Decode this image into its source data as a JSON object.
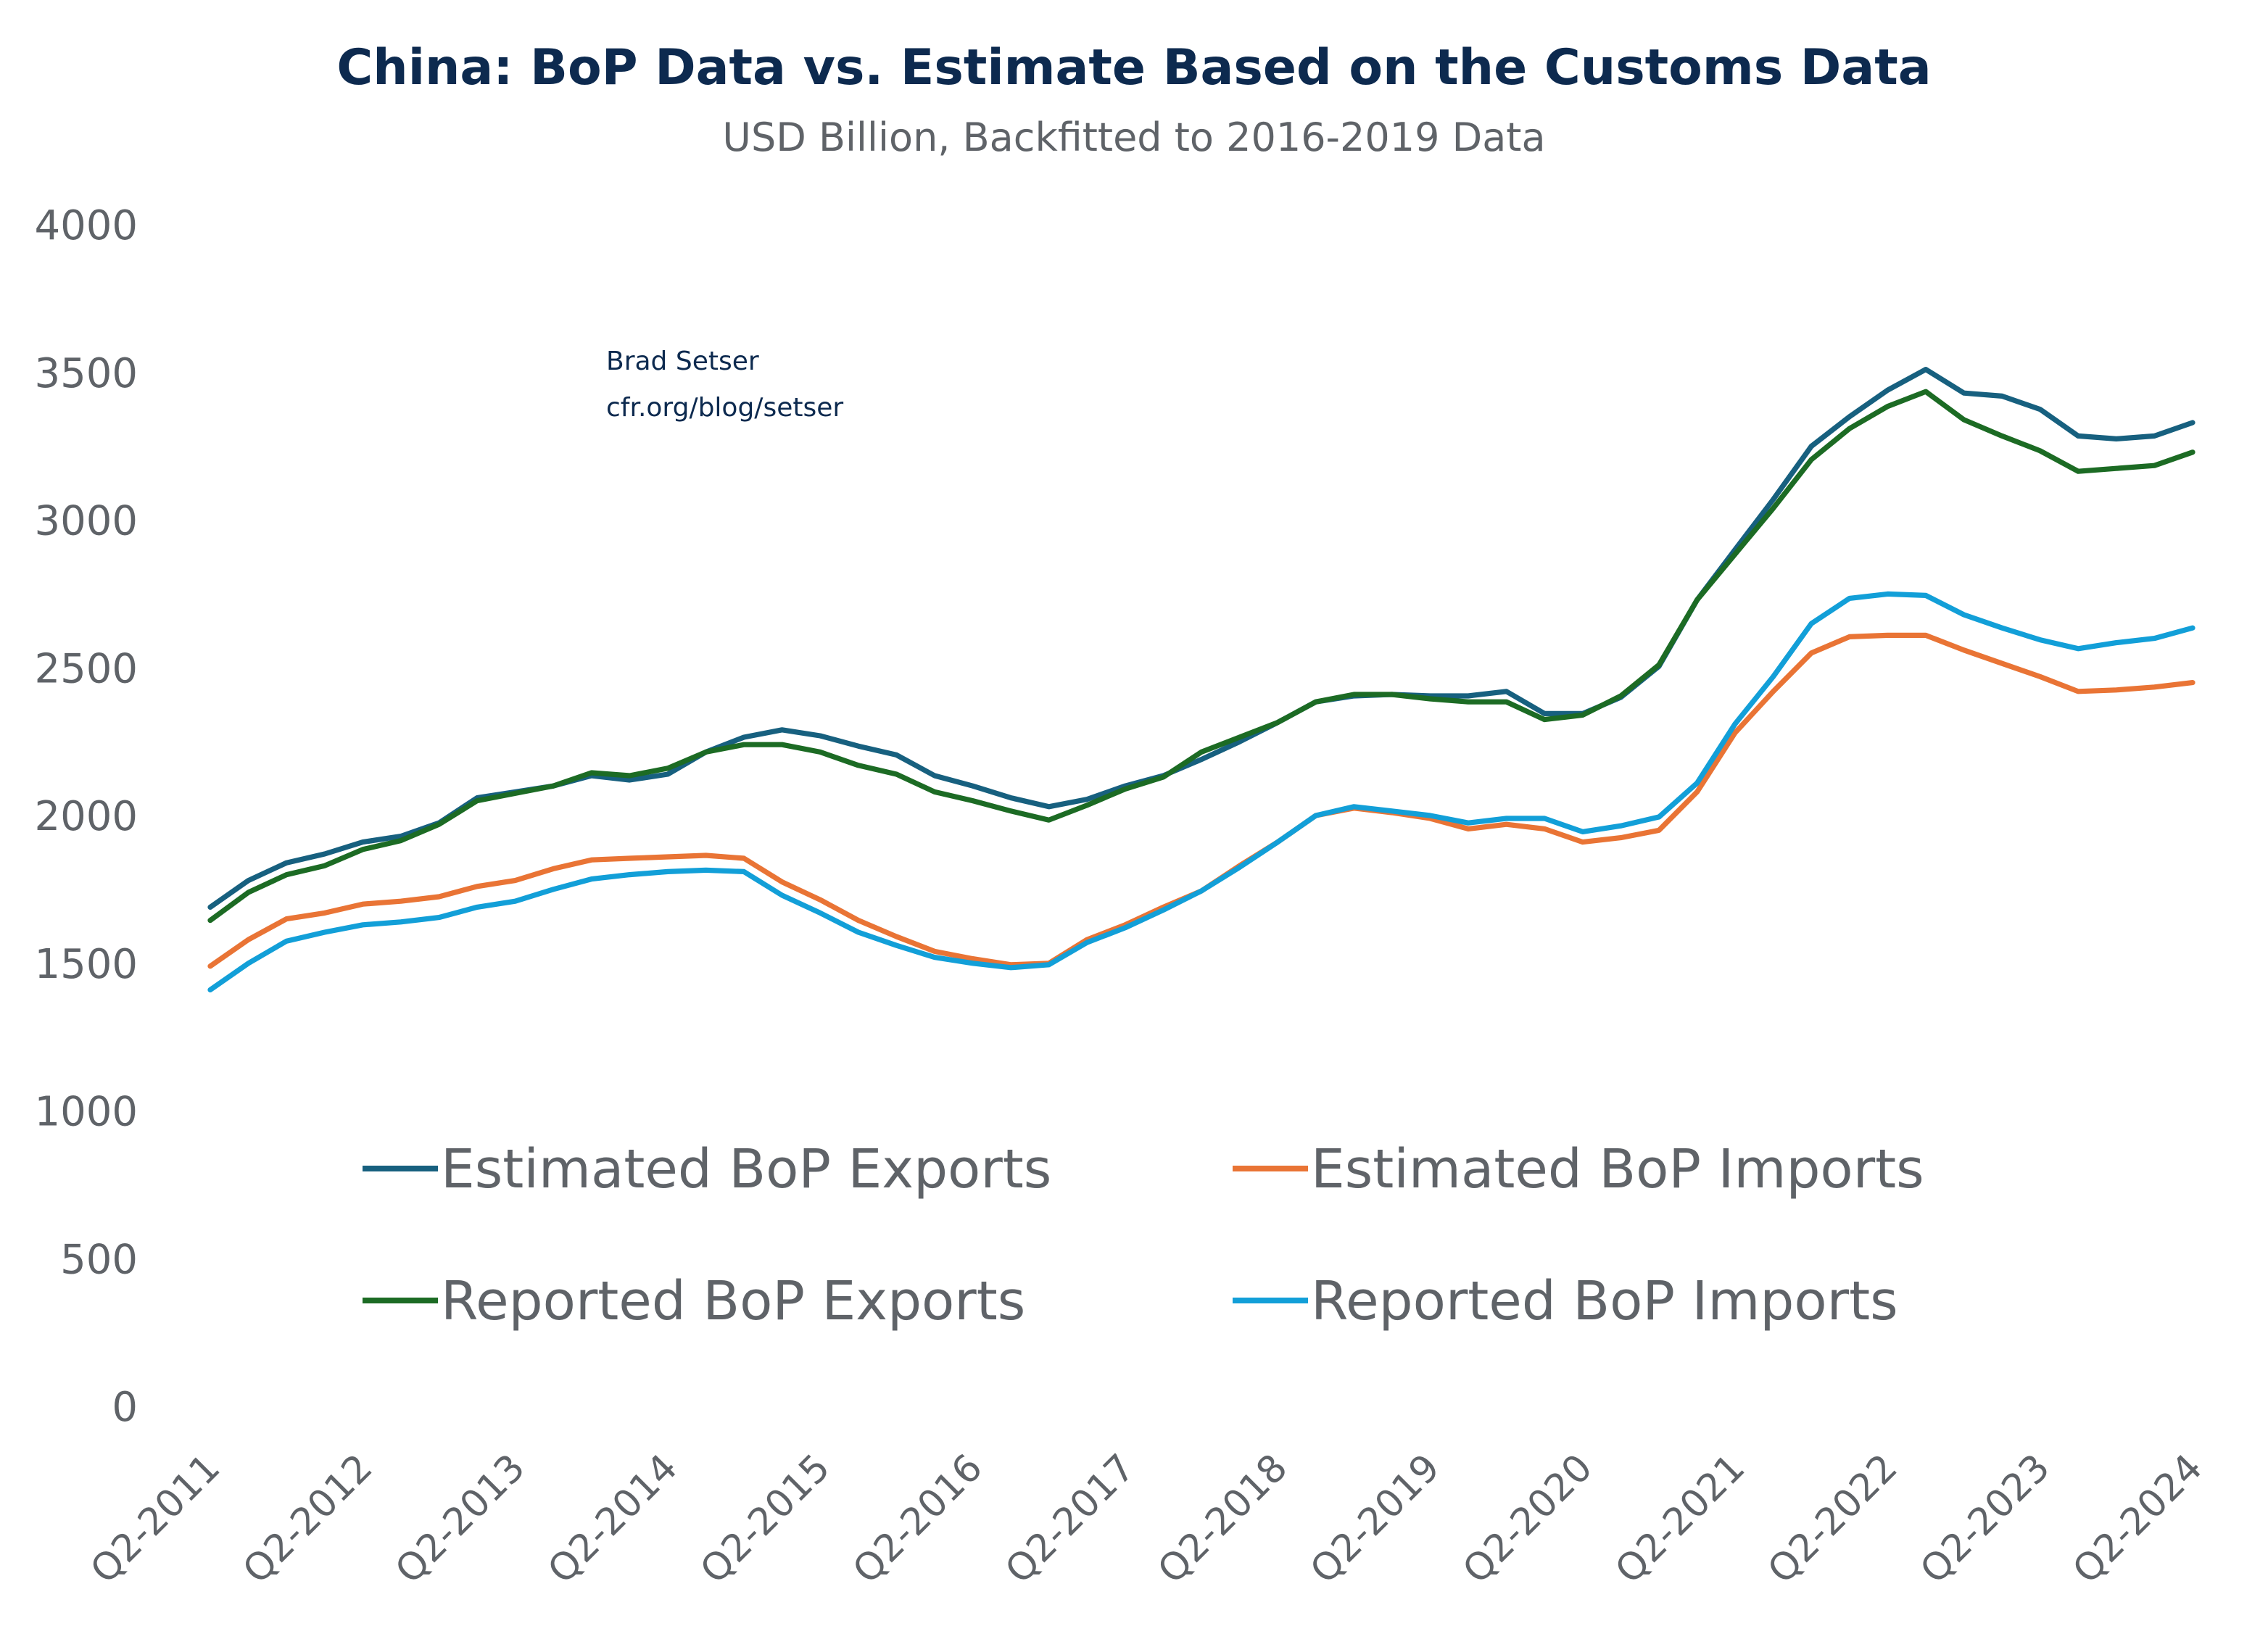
{
  "chart_data": {
    "type": "line",
    "title": "China: BoP Data vs. Estimate Based on the Customs Data",
    "subtitle": "USD Billion, Backfitted to 2016-2019 Data",
    "annotation": [
      "Brad Setser",
      "cfr.org/blog/setser"
    ],
    "xlabel": "",
    "ylabel": "",
    "ylim": [
      0,
      4000
    ],
    "yticks": [
      "0",
      "500",
      "1000",
      "1500",
      "2000",
      "2500",
      "3000",
      "3500",
      "4000"
    ],
    "xticks": [
      "Q2-2011",
      "Q2-2012",
      "Q2-2013",
      "Q2-2014",
      "Q2-2015",
      "Q2-2016",
      "Q2-2017",
      "Q2-2018",
      "Q2-2019",
      "Q2-2020",
      "Q2-2021",
      "Q2-2022",
      "Q2-2023",
      "Q2-2024"
    ],
    "x_range": [
      "Q2-2011",
      "Q2-2024"
    ],
    "frequency": "quarterly",
    "grid": false,
    "legend_position": "bottom-center",
    "series": [
      {
        "name": "Estimated BoP Exports",
        "color": "#17607f",
        "values": [
          1690,
          1780,
          1840,
          1870,
          1910,
          1930,
          1975,
          2060,
          2080,
          2100,
          2135,
          2120,
          2140,
          2215,
          2265,
          2290,
          2270,
          2235,
          2205,
          2135,
          2100,
          2060,
          2030,
          2055,
          2100,
          2135,
          2190,
          2250,
          2315,
          2385,
          2405,
          2410,
          2405,
          2405,
          2420,
          2345,
          2345,
          2400,
          2505,
          2730,
          2900,
          3070,
          3250,
          3350,
          3440,
          3510,
          3430,
          3420,
          3375,
          3285,
          3275,
          3285,
          3330
        ]
      },
      {
        "name": "Estimated BoP Imports",
        "color": "#e97435",
        "values": [
          1490,
          1580,
          1650,
          1670,
          1700,
          1710,
          1725,
          1760,
          1780,
          1820,
          1850,
          1855,
          1860,
          1865,
          1855,
          1775,
          1715,
          1645,
          1590,
          1540,
          1515,
          1495,
          1500,
          1580,
          1630,
          1690,
          1745,
          1830,
          1910,
          2000,
          2025,
          2010,
          1990,
          1955,
          1970,
          1955,
          1910,
          1925,
          1950,
          2080,
          2280,
          2420,
          2550,
          2605,
          2610,
          2610,
          2560,
          2515,
          2470,
          2420,
          2425,
          2435,
          2450
        ]
      },
      {
        "name": "Reported BoP Exports",
        "color": "#1c6b24",
        "values": [
          1645,
          1740,
          1800,
          1830,
          1885,
          1915,
          1970,
          2050,
          2075,
          2100,
          2145,
          2135,
          2160,
          2215,
          2240,
          2240,
          2215,
          2170,
          2140,
          2080,
          2050,
          2015,
          1985,
          2035,
          2090,
          2130,
          2215,
          2265,
          2315,
          2385,
          2410,
          2410,
          2395,
          2385,
          2385,
          2325,
          2340,
          2405,
          2510,
          2730,
          2885,
          3040,
          3205,
          3310,
          3385,
          3435,
          3340,
          3285,
          3235,
          3165,
          3175,
          3185,
          3230
        ]
      },
      {
        "name": "Reported BoP Imports",
        "color": "#129fd8",
        "values": [
          1410,
          1500,
          1575,
          1605,
          1630,
          1640,
          1655,
          1690,
          1710,
          1750,
          1785,
          1800,
          1810,
          1815,
          1810,
          1730,
          1670,
          1605,
          1560,
          1520,
          1500,
          1485,
          1495,
          1570,
          1620,
          1680,
          1745,
          1825,
          1910,
          2000,
          2030,
          2015,
          2000,
          1975,
          1990,
          1990,
          1945,
          1965,
          1995,
          2110,
          2310,
          2470,
          2650,
          2735,
          2750,
          2745,
          2680,
          2635,
          2595,
          2565,
          2585,
          2600,
          2635
        ]
      }
    ]
  }
}
